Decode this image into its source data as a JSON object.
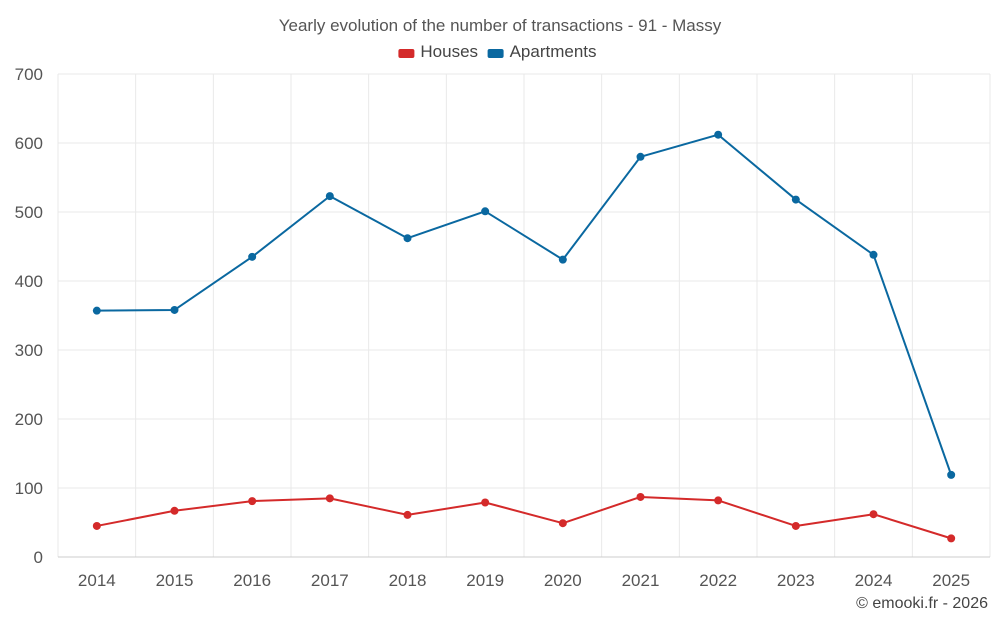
{
  "chart_data": {
    "type": "line",
    "title": "Yearly evolution of the number of transactions - 91 - Massy",
    "categories": [
      "2014",
      "2015",
      "2016",
      "2017",
      "2018",
      "2019",
      "2020",
      "2021",
      "2022",
      "2023",
      "2024",
      "2025"
    ],
    "ylim": [
      0,
      700
    ],
    "yticks": [
      0,
      100,
      200,
      300,
      400,
      500,
      600,
      700
    ],
    "grid": true,
    "legend_position": "top-center",
    "series": [
      {
        "name": "Houses",
        "color": "#d42a2a",
        "values": [
          45,
          67,
          81,
          85,
          61,
          79,
          49,
          87,
          82,
          45,
          62,
          27
        ]
      },
      {
        "name": "Apartments",
        "color": "#0a68a0",
        "values": [
          357,
          358,
          435,
          523,
          462,
          501,
          431,
          580,
          612,
          518,
          438,
          119
        ]
      }
    ]
  },
  "credit": "© emooki.fr - 2026"
}
